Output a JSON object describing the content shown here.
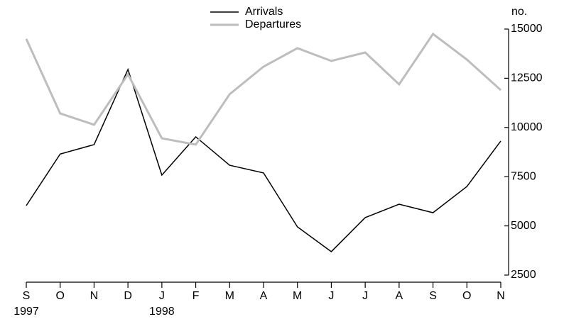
{
  "chart_data": {
    "type": "line",
    "categories": [
      "S",
      "O",
      "N",
      "D",
      "J",
      "F",
      "M",
      "A",
      "M",
      "J",
      "J",
      "A",
      "S",
      "O",
      "N"
    ],
    "year_labels": [
      "1997",
      null,
      null,
      null,
      "1998",
      null,
      null,
      null,
      null,
      null,
      null,
      null,
      null,
      null,
      null
    ],
    "y_label": "no.",
    "series": [
      {
        "name": "Arrivals",
        "color": "#000000",
        "values": [
          6030,
          8650,
          9130,
          12950,
          7580,
          9525,
          8080,
          7690,
          4950,
          3690,
          5420,
          6100,
          5670,
          7000,
          9310
        ]
      },
      {
        "name": "Departures",
        "color": "#bdbdbd",
        "values": [
          14500,
          10710,
          10140,
          12700,
          9450,
          9130,
          11690,
          13090,
          14030,
          13380,
          13810,
          12190,
          14750,
          13450,
          11900
        ]
      }
    ],
    "ylim": [
      2500,
      15000
    ],
    "yticks": [
      2500,
      5000,
      7500,
      10000,
      12500,
      15000
    ],
    "grid": false
  }
}
